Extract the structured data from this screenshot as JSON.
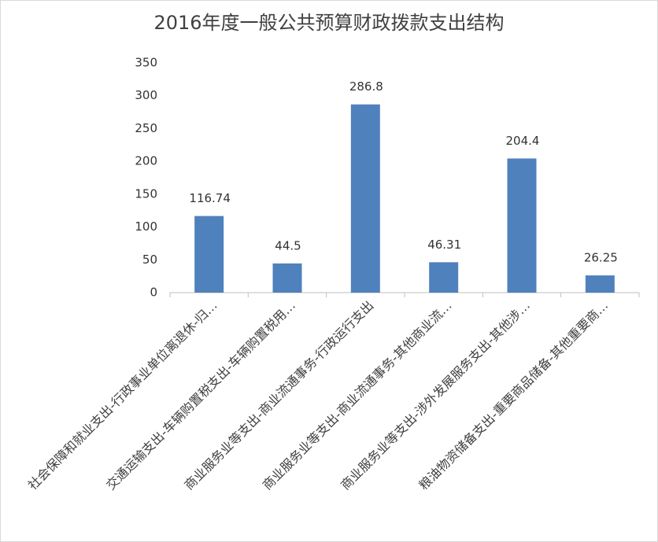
{
  "chart_data": {
    "type": "bar",
    "title": "2016年度一般公共预算财政拨款支出结构",
    "categories": [
      "社会保障和就业支出-行政事业单位离退休-归…",
      "交通运输支出-车辆购置税支出-车辆购置税用…",
      "商业服务业等支出-商业流通事务-行政运行支出",
      "商业服务业等支出-商业流通事务-其他商业流…",
      "商业服务业等支出-涉外发展服务支出-其他涉…",
      "粮油物资储备支出-重要商品储备-其他重要商…"
    ],
    "values": [
      116.74,
      44.5,
      286.8,
      46.31,
      204.4,
      26.25
    ],
    "color": "#4f81bd",
    "ylim": [
      0,
      350
    ],
    "yticks": [
      0,
      50,
      100,
      150,
      200,
      250,
      300,
      350
    ],
    "grid": false
  }
}
